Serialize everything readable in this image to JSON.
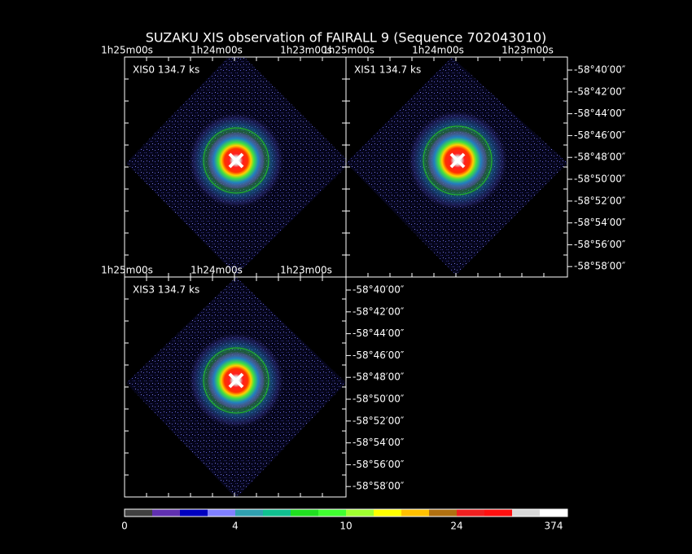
{
  "title": "SUZAKU XIS observation of FAIRALL 9  (Sequence 702043010)",
  "panels": [
    {
      "label": "XIS0 134.7 ks",
      "ra_labels": [
        "1h25m00s",
        "1h24m00s",
        "1h23m00s"
      ]
    },
    {
      "label": "XIS1 134.7 ks",
      "ra_labels": [
        "1h25m00s",
        "1h24m00s",
        "1h23m00s"
      ],
      "dec_labels": [
        "-58°40′00″",
        "-58°42′00″",
        "-58°44′00″",
        "-58°46′00″",
        "-58°48′00″",
        "-58°50′00″",
        "-58°52′00″",
        "-58°54′00″",
        "-58°56′00″",
        "-58°58′00″"
      ]
    },
    {
      "label": "XIS3 134.7 ks",
      "ra_labels": [
        "1h25m00s",
        "1h24m00s",
        "1h23m00s"
      ],
      "dec_labels": [
        "-58°40′00″",
        "-58°42′00″",
        "-58°44′00″",
        "-58°46′00″",
        "-58°48′00″",
        "-58°50′00″",
        "-58°52′00″",
        "-58°54′00″",
        "-58°56′00″",
        "-58°58′00″"
      ]
    }
  ],
  "colorbar": {
    "labels": [
      "0",
      "4",
      "10",
      "24",
      "374"
    ]
  }
}
